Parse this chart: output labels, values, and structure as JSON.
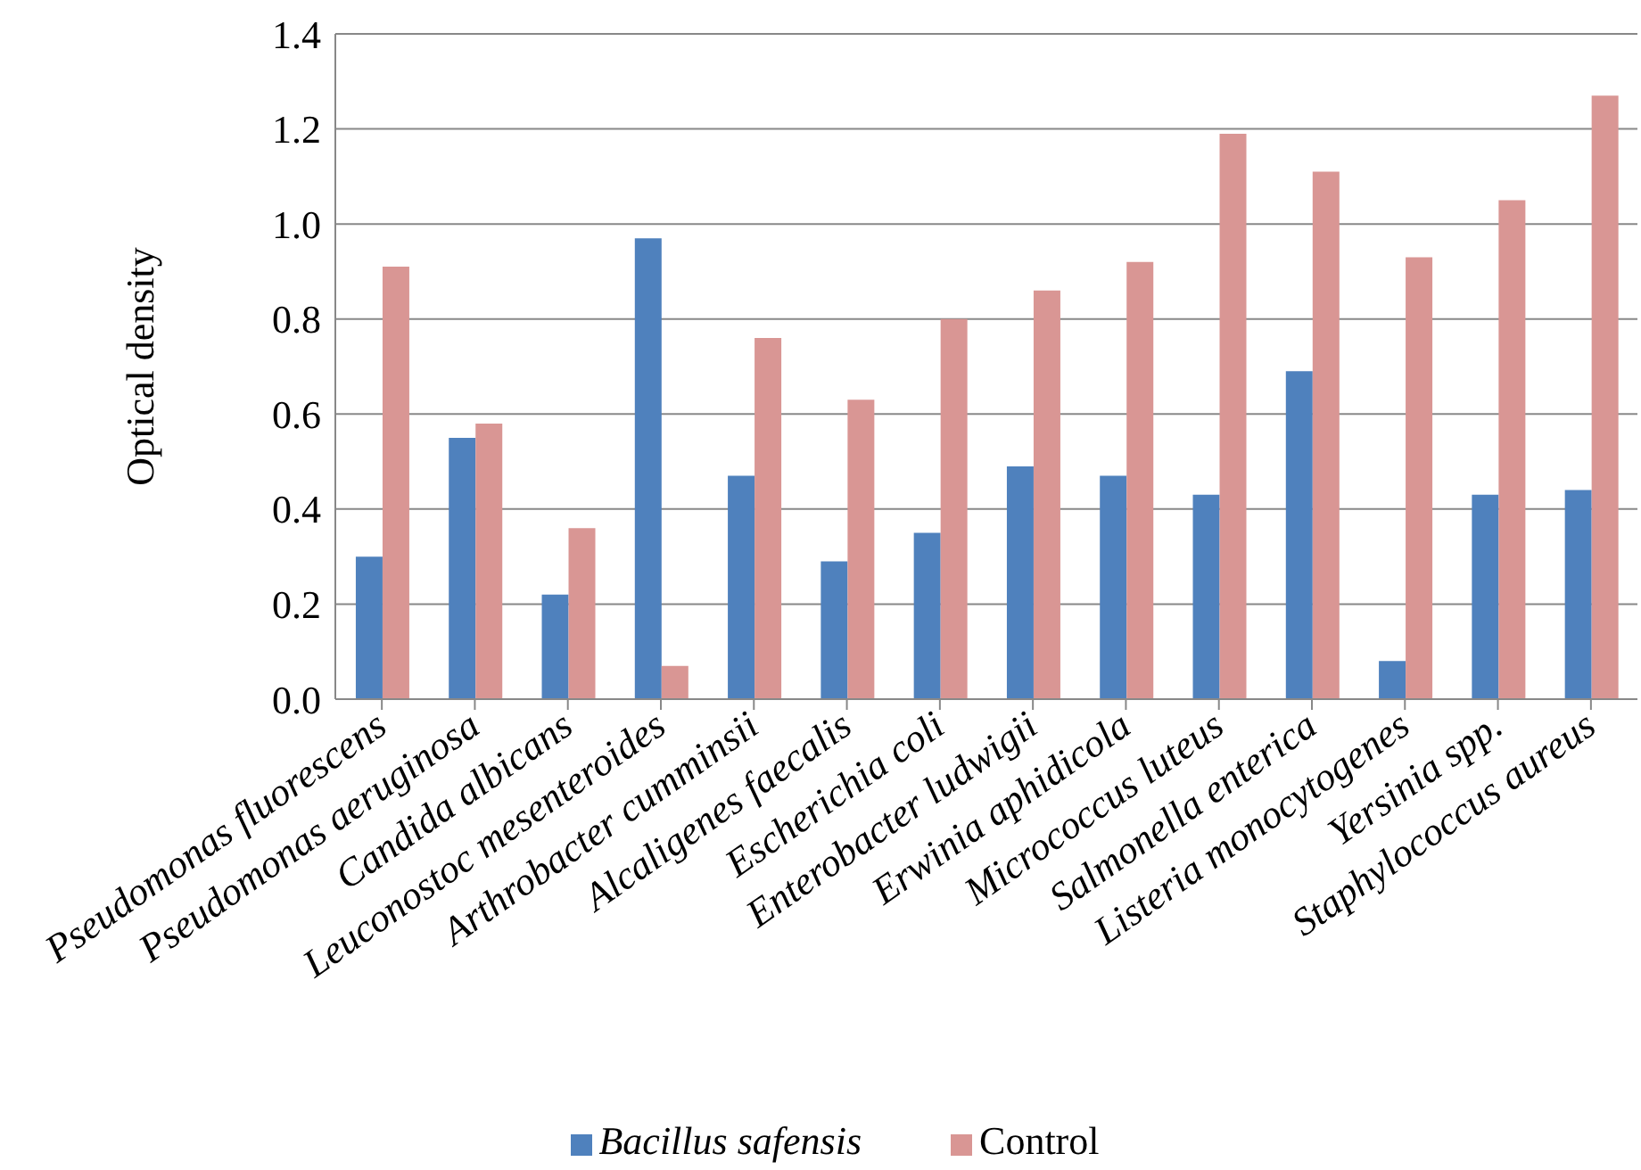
{
  "chart_data": {
    "type": "bar",
    "ylabel": "Optical density",
    "categories": [
      "Pseudomonas fluorescens",
      "Pseudomonas aeruginosa",
      "Candida albicans",
      "Leuconostoc mesenteroides",
      "Arthrobacter cumminsii",
      "Alcaligenes faecalis",
      "Escherichia coli",
      "Enterobacter ludwigii",
      "Erwinia aphidicola",
      "Micrococcus luteus",
      "Salmonella enterica",
      "Listeria monocytogenes",
      "Yersinia spp.",
      "Staphylococcus aureus"
    ],
    "series": [
      {
        "name": "Bacillus safensis",
        "color": "#4f81bd",
        "values": [
          0.3,
          0.55,
          0.22,
          0.97,
          0.47,
          0.29,
          0.35,
          0.49,
          0.47,
          0.43,
          0.69,
          0.08,
          0.43,
          0.44
        ]
      },
      {
        "name": "Control",
        "color": "#d99694",
        "values": [
          0.91,
          0.58,
          0.36,
          0.07,
          0.76,
          0.63,
          0.8,
          0.86,
          0.92,
          1.19,
          1.11,
          0.93,
          1.05,
          1.27
        ]
      }
    ],
    "ylim": [
      0,
      1.4
    ],
    "yticks": [
      {
        "value": 0,
        "label": "0.0"
      },
      {
        "value": 0.2,
        "label": "0.2"
      },
      {
        "value": 0.4,
        "label": "0.4"
      },
      {
        "value": 0.6,
        "label": "0.6"
      },
      {
        "value": 0.8,
        "label": "0.8"
      },
      {
        "value": 1.0,
        "label": "1.0"
      },
      {
        "value": 1.2,
        "label": "1.2"
      },
      {
        "value": 1.4,
        "label": "1.4"
      }
    ],
    "grid": "y",
    "legend": "bottom"
  }
}
